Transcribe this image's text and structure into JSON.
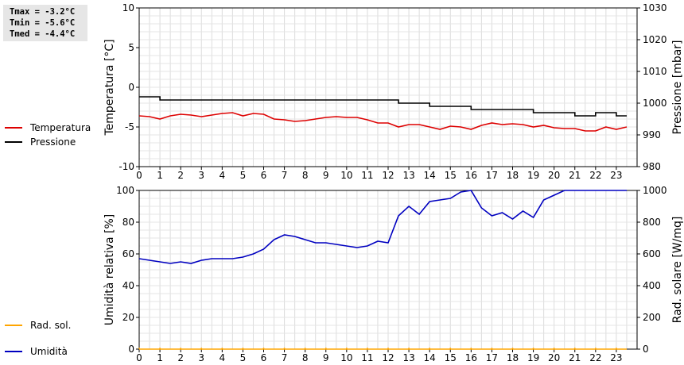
{
  "stats": {
    "lines": [
      "Tmax = -3.2°C",
      "Tmin = -5.6°C",
      "Tmed = -4.4°C"
    ]
  },
  "legend_top": [
    {
      "label": "Temperatura",
      "color": "#dd0000"
    },
    {
      "label": "Pressione",
      "color": "#000000"
    }
  ],
  "legend_bottom": [
    {
      "label": "Umidità",
      "color": "#0000c0"
    },
    {
      "label": "Rad. sol.",
      "color": "#ffa500"
    }
  ],
  "chart_data": [
    {
      "type": "line",
      "title": "",
      "xlabel": "",
      "xlim": [
        0,
        24
      ],
      "xticks": [
        "0",
        "1",
        "2",
        "3",
        "4",
        "5",
        "6",
        "7",
        "8",
        "9",
        "10",
        "11",
        "12",
        "13",
        "14",
        "15",
        "16",
        "17",
        "18",
        "19",
        "20",
        "21",
        "22",
        "23"
      ],
      "ylabel_left": "Temperatura [°C]",
      "ylim_left": [
        -10,
        10
      ],
      "yticks_left": [
        "-10",
        "-5",
        "0",
        "5",
        "10"
      ],
      "ylabel_right": "Pressione [mbar]",
      "ylim_right": [
        980,
        1030
      ],
      "yticks_right": [
        "980",
        "990",
        "1000",
        "1010",
        "1020",
        "1030"
      ],
      "grid": true,
      "legend": "left-outside",
      "series": [
        {
          "name": "Temperatura",
          "axis": "left",
          "color": "#dd0000",
          "x": [
            0,
            0.5,
            1,
            1.5,
            2,
            2.5,
            3,
            3.5,
            4,
            4.5,
            5,
            5.5,
            6,
            6.5,
            7,
            7.5,
            8,
            8.5,
            9,
            9.5,
            10,
            10.5,
            11,
            11.5,
            12,
            12.5,
            13,
            13.5,
            14,
            14.5,
            15,
            15.5,
            16,
            16.5,
            17,
            17.5,
            18,
            18.5,
            19,
            19.5,
            20,
            20.5,
            21,
            21.5,
            22,
            22.5,
            23,
            23.5
          ],
          "y": [
            -3.6,
            -3.7,
            -4.0,
            -3.6,
            -3.4,
            -3.5,
            -3.7,
            -3.5,
            -3.3,
            -3.2,
            -3.6,
            -3.3,
            -3.4,
            -4.0,
            -4.1,
            -4.3,
            -4.2,
            -4.0,
            -3.8,
            -3.7,
            -3.8,
            -3.8,
            -4.1,
            -4.5,
            -4.5,
            -5.0,
            -4.7,
            -4.7,
            -5.0,
            -5.3,
            -4.9,
            -5.0,
            -5.3,
            -4.8,
            -4.5,
            -4.7,
            -4.6,
            -4.7,
            -5.0,
            -4.8,
            -5.1,
            -5.2,
            -5.2,
            -5.5,
            -5.5,
            -5.0,
            -5.3,
            -5.0
          ]
        },
        {
          "name": "Pressione",
          "axis": "right",
          "color": "#000000",
          "x": [
            0,
            0.5,
            1,
            12,
            12.5,
            13,
            13.5,
            14,
            15.5,
            16,
            18.5,
            19,
            20.5,
            21,
            21.5,
            22,
            22.5,
            23,
            23.5
          ],
          "y": [
            1002,
            1002,
            1001,
            1001,
            1000,
            1000,
            1000,
            999,
            999,
            998,
            998,
            997,
            997,
            996,
            996,
            997,
            997,
            996,
            996
          ]
        }
      ]
    },
    {
      "type": "line",
      "title": "",
      "xlabel": "",
      "xlim": [
        0,
        24
      ],
      "xticks": [
        "0",
        "1",
        "2",
        "3",
        "4",
        "5",
        "6",
        "7",
        "8",
        "9",
        "10",
        "11",
        "12",
        "13",
        "14",
        "15",
        "16",
        "17",
        "18",
        "19",
        "20",
        "21",
        "22",
        "23"
      ],
      "ylabel_left": "Umidità relativa [%]",
      "ylim_left": [
        0,
        100
      ],
      "yticks_left": [
        "0",
        "20",
        "40",
        "60",
        "80",
        "100"
      ],
      "ylabel_right": "Rad. solare [W/mq]",
      "ylim_right": [
        0,
        1000
      ],
      "yticks_right": [
        "0",
        "200",
        "400",
        "600",
        "800",
        "1000"
      ],
      "grid": true,
      "legend": "left-outside",
      "series": [
        {
          "name": "Umidità",
          "axis": "left",
          "color": "#0000c0",
          "x": [
            0,
            0.5,
            1,
            1.5,
            2,
            2.5,
            3,
            3.5,
            4,
            4.5,
            5,
            5.5,
            6,
            6.5,
            7,
            7.5,
            8,
            8.5,
            9,
            9.5,
            10,
            10.5,
            11,
            11.5,
            12,
            12.5,
            13,
            13.5,
            14,
            14.5,
            15,
            15.5,
            16,
            16.5,
            17,
            17.5,
            18,
            18.5,
            19,
            19.5,
            20,
            20.5,
            21,
            21.5,
            22,
            22.5,
            23,
            23.5
          ],
          "y": [
            57,
            56,
            55,
            54,
            55,
            54,
            56,
            57,
            57,
            57,
            58,
            60,
            63,
            69,
            72,
            71,
            69,
            67,
            67,
            66,
            65,
            64,
            65,
            68,
            67,
            84,
            90,
            85,
            93,
            94,
            95,
            99,
            100,
            89,
            84,
            86,
            82,
            87,
            83,
            94,
            97,
            100,
            100,
            100,
            100,
            100,
            100,
            100
          ]
        },
        {
          "name": "Rad. sol.",
          "axis": "right",
          "color": "#ffa500",
          "x": [
            0,
            23.5
          ],
          "y": [
            0,
            0
          ]
        }
      ]
    }
  ]
}
